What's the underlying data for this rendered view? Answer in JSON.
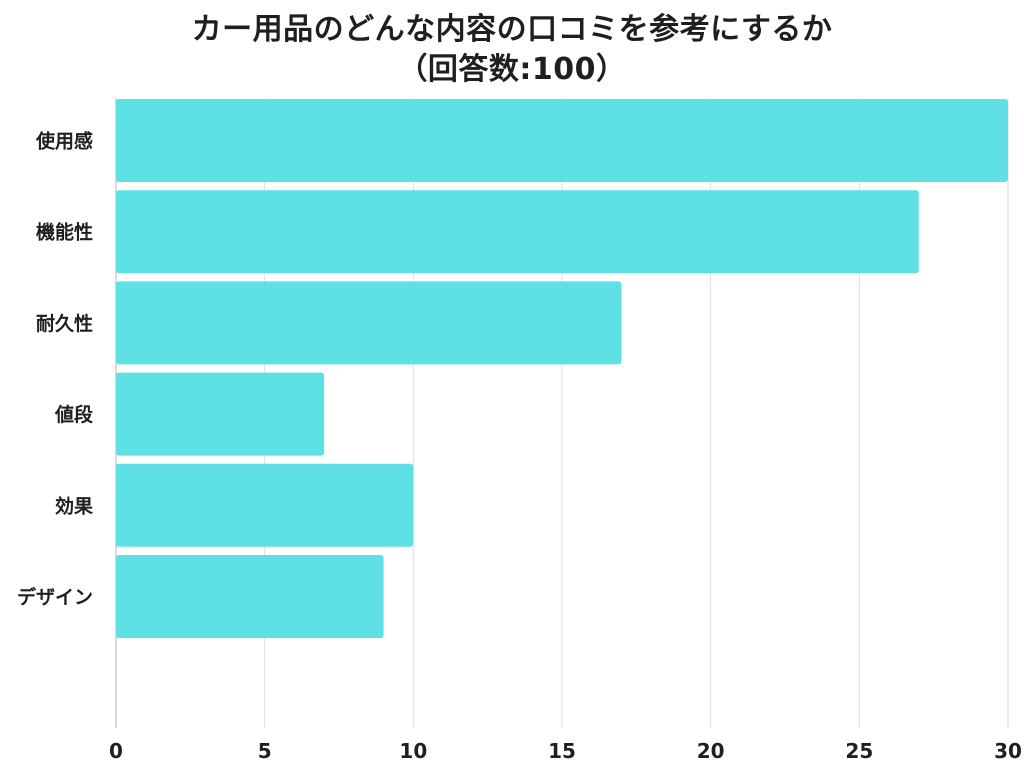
{
  "chart_data": {
    "type": "bar",
    "orientation": "horizontal",
    "title_line1": "カー用品のどんな内容の口コミを参考にするか",
    "title_line2": "（回答数:100）",
    "categories": [
      "使用感",
      "機能性",
      "耐久性",
      "値段",
      "効果",
      "デザイン"
    ],
    "values": [
      30,
      27,
      17,
      7,
      10,
      9
    ],
    "xlim": [
      0,
      30
    ],
    "xticks": [
      "0",
      "5",
      "10",
      "15",
      "20",
      "25",
      "30"
    ],
    "grid": true,
    "bar_color": "#5ee0e4"
  }
}
